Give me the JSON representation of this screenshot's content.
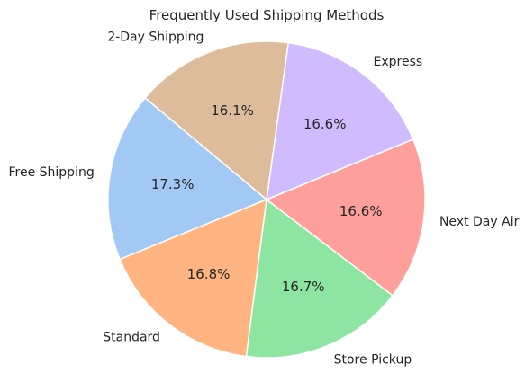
{
  "chart_data": {
    "type": "pie",
    "title": "Frequently Used Shipping Methods",
    "categories": [
      "Free Shipping",
      "Standard",
      "Store Pickup",
      "Next Day Air",
      "Express",
      "2-Day Shipping"
    ],
    "values": [
      17.3,
      16.8,
      16.7,
      16.6,
      16.6,
      16.1
    ],
    "value_labels": [
      "17.3%",
      "16.8%",
      "16.7%",
      "16.6%",
      "16.6%",
      "16.1%"
    ],
    "colors": [
      "#a1c9f4",
      "#ffb482",
      "#8de5a1",
      "#ff9f9b",
      "#d0bbff",
      "#debb9b"
    ],
    "start_angle_deg": 140,
    "direction": "counterclockwise",
    "legend": "none"
  }
}
